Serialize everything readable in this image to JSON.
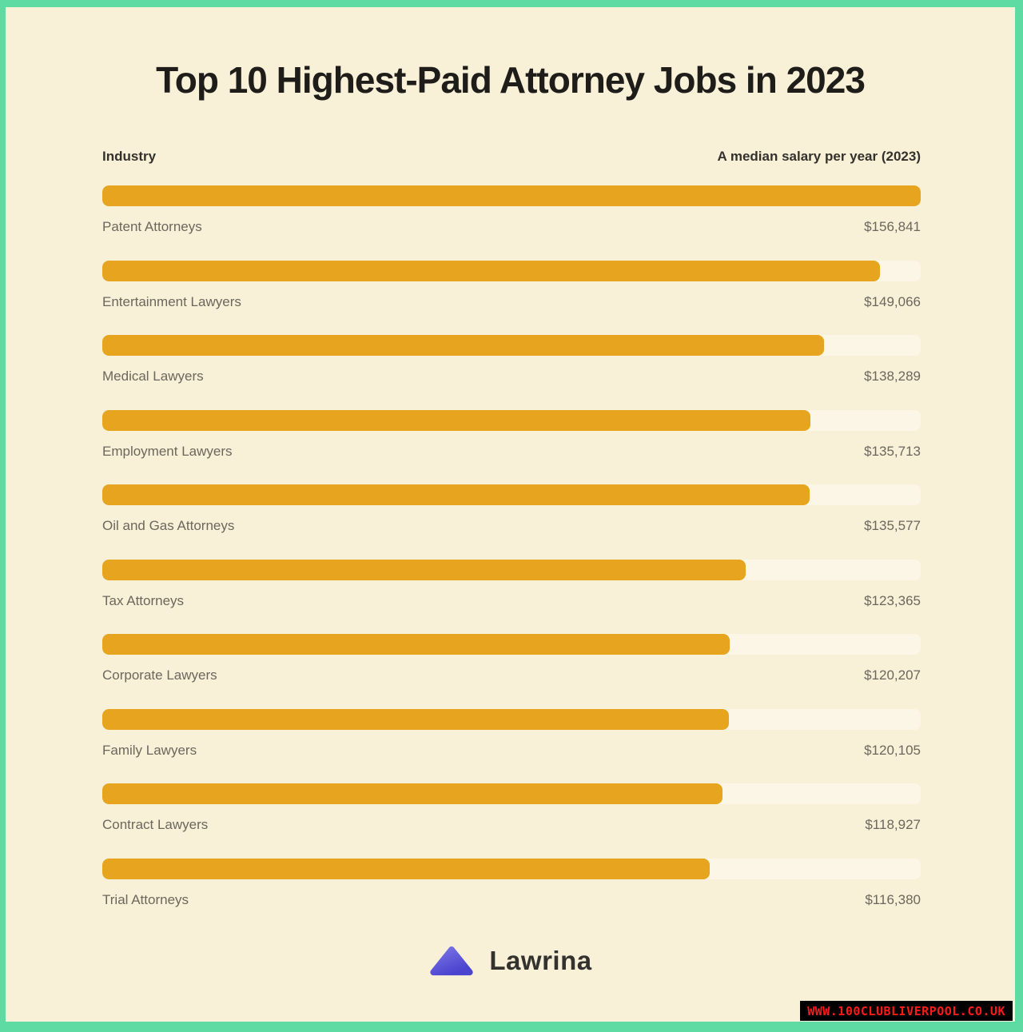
{
  "title": "Top 10 Highest-Paid Attorney Jobs in 2023",
  "columns": {
    "left": "Industry",
    "right": "A median salary per year (2023)"
  },
  "chart_data": {
    "type": "bar",
    "orientation": "horizontal",
    "title": "Top 10 Highest-Paid Attorney Jobs in 2023",
    "xlabel": "A median salary per year (2023)",
    "ylabel": "Industry",
    "categories": [
      "Patent Attorneys",
      "Entertainment Lawyers",
      "Medical Lawyers",
      "Employment Lawyers",
      "Oil and Gas Attorneys",
      "Tax Attorneys",
      "Corporate Lawyers",
      "Family Lawyers",
      "Contract Lawyers",
      "Trial Attorneys"
    ],
    "values": [
      156841,
      149066,
      138289,
      135713,
      135577,
      123365,
      120207,
      120105,
      118927,
      116380
    ],
    "value_labels": [
      "$156,841",
      "$149,066",
      "$138,289",
      "$135,713",
      "$135,577",
      "$123,365",
      "$120,207",
      "$120,105",
      "$118,927",
      "$116,380"
    ],
    "max_value": 156841,
    "grid": false,
    "legend": false
  },
  "logo": {
    "text": "Lawrina"
  },
  "watermark": {
    "text": "WWW.100CLUBLIVERPOOL.CO.UK"
  },
  "theme": {
    "frame": "#5EDAA3",
    "bg": "#F9F0D8",
    "bar": "#E6A41F",
    "track": "#FCF6E6",
    "title_color": "#1E1D1A",
    "header_color": "#33312C",
    "label_color": "#6B675C",
    "logo_triangle_light": "#7B74E6",
    "logo_triangle_dark": "#4B44CE",
    "logo_text_color": "#33322E",
    "wm_bg": "#000000",
    "wm_color": "#FF1A1A"
  }
}
